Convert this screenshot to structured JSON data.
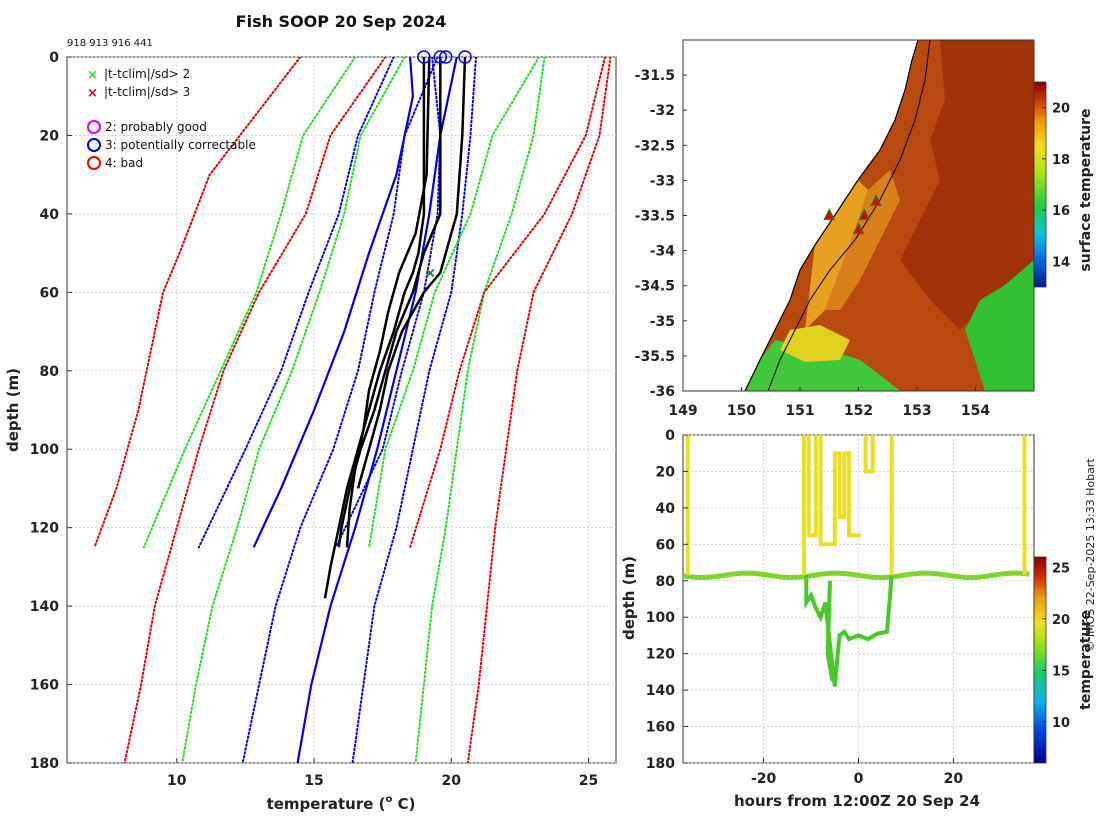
{
  "figure": {
    "title": "Fish SOOP 20 Sep 2024",
    "ids_text": "918 913 916 441",
    "credit": "© IMOS 22-Sep-2025 13:33 Hobart"
  },
  "chart_data": [
    {
      "type": "line",
      "name": "profile-panel",
      "xlabel": "temperature (°C)",
      "xlabel_main": "temperature (",
      "xlabel_sup": "o",
      "xlabel_tail": " C)",
      "ylabel": "depth (m)",
      "xlim": [
        6,
        26
      ],
      "ylim": [
        180,
        0
      ],
      "xticks": [
        10,
        15,
        20,
        25
      ],
      "yticks": [
        0,
        20,
        40,
        60,
        80,
        100,
        120,
        140,
        160,
        180
      ],
      "legend": [
        {
          "label": "|t-tclim|/sd> 2",
          "marker": "x",
          "color": "#22dd22"
        },
        {
          "label": "|t-tclim|/sd> 3",
          "marker": "x",
          "color": "#dd0000"
        },
        {
          "label": "2: probably good",
          "marker": "o",
          "color": "#dd00dd"
        },
        {
          "label": "3: potentially correctable",
          "marker": "o",
          "color": "#0000ee"
        },
        {
          "label": "4: bad",
          "marker": "o",
          "color": "#ee0000"
        }
      ],
      "climatology": [
        {
          "name": "red-sd3-left-1",
          "color": "#dd0000",
          "style": "dotted",
          "depth": [
            0,
            30,
            50,
            60,
            90,
            110,
            125
          ],
          "temp": [
            14.5,
            11.2,
            10.1,
            9.5,
            8.6,
            7.8,
            7.0
          ]
        },
        {
          "name": "red-sd3-left-2",
          "color": "#dd0000",
          "style": "dotted",
          "depth": [
            0,
            20,
            40,
            60,
            80,
            100,
            120,
            140,
            160,
            180
          ],
          "temp": [
            17.6,
            15.6,
            14.7,
            13.0,
            11.7,
            10.8,
            10.0,
            9.2,
            8.7,
            8.1
          ]
        },
        {
          "name": "green-sd2-left-1",
          "color": "#22dd22",
          "style": "dotted",
          "depth": [
            0,
            20,
            40,
            60,
            80,
            100,
            125
          ],
          "temp": [
            16.5,
            14.6,
            13.8,
            12.9,
            11.6,
            10.3,
            8.8
          ]
        },
        {
          "name": "green-sd2-left-2",
          "color": "#22dd22",
          "style": "dotted",
          "depth": [
            0,
            20,
            40,
            60,
            80,
            100,
            120,
            140,
            160,
            180
          ],
          "temp": [
            18.3,
            16.7,
            16.1,
            15.2,
            14.2,
            13.0,
            12.2,
            11.3,
            10.7,
            10.2
          ]
        },
        {
          "name": "blue-sd1-left-1",
          "color": "#0000dd",
          "style": "dotted",
          "depth": [
            0,
            20,
            40,
            60,
            80,
            100,
            125
          ],
          "temp": [
            17.9,
            16.6,
            15.9,
            14.8,
            13.8,
            12.5,
            10.8
          ]
        },
        {
          "name": "blue-sd1-left-2",
          "color": "#0000dd",
          "style": "dotted",
          "depth": [
            0,
            20,
            40,
            60,
            80,
            100,
            120,
            140,
            160,
            180
          ],
          "temp": [
            19.5,
            18.3,
            17.9,
            17.2,
            16.6,
            15.7,
            14.5,
            13.6,
            13.0,
            12.4
          ]
        },
        {
          "name": "blue-mean-1",
          "color": "#0000dd",
          "style": "solid",
          "depth": [
            0,
            10,
            30,
            50,
            70,
            90,
            110,
            125
          ],
          "temp": [
            18.5,
            18.6,
            18.0,
            17.0,
            16.1,
            15.0,
            13.8,
            12.8
          ]
        },
        {
          "name": "blue-mean-2",
          "color": "#0000dd",
          "style": "solid",
          "depth": [
            0,
            20,
            40,
            60,
            80,
            100,
            120,
            140,
            160,
            180
          ],
          "temp": [
            20.2,
            19.6,
            19.2,
            18.7,
            18.0,
            17.3,
            16.5,
            15.6,
            14.9,
            14.4
          ]
        },
        {
          "name": "blue-sd1-right-1",
          "color": "#0000dd",
          "style": "dotted",
          "depth": [
            0,
            20,
            40,
            60,
            80,
            100,
            125
          ],
          "temp": [
            19.3,
            19.6,
            19.5,
            19.0,
            18.2,
            17.5,
            15.8
          ]
        },
        {
          "name": "blue-sd1-right-2",
          "color": "#0000dd",
          "style": "dotted",
          "depth": [
            0,
            20,
            40,
            60,
            80,
            100,
            120,
            140,
            160,
            180
          ],
          "temp": [
            20.9,
            20.7,
            20.4,
            20.0,
            19.2,
            18.6,
            18.0,
            17.2,
            16.8,
            16.4
          ]
        },
        {
          "name": "green-sd2-right-1",
          "color": "#22dd22",
          "style": "dotted",
          "depth": [
            0,
            20,
            40,
            60,
            80,
            100,
            125
          ],
          "temp": [
            23.2,
            21.5,
            20.7,
            19.4,
            18.6,
            17.6,
            17.0
          ]
        },
        {
          "name": "green-sd2-right-2",
          "color": "#22dd22",
          "style": "dotted",
          "depth": [
            0,
            20,
            40,
            60,
            80,
            100,
            120,
            140,
            160,
            180
          ],
          "temp": [
            23.4,
            23.0,
            22.2,
            21.2,
            20.6,
            20.2,
            19.8,
            19.3,
            19.0,
            18.7
          ]
        },
        {
          "name": "red-sd3-right-1",
          "color": "#dd0000",
          "style": "dotted",
          "depth": [
            0,
            20,
            40,
            60,
            80,
            100,
            125
          ],
          "temp": [
            25.6,
            24.9,
            23.4,
            21.2,
            20.3,
            19.6,
            18.5
          ]
        },
        {
          "name": "red-sd3-right-2",
          "color": "#dd0000",
          "style": "dotted",
          "depth": [
            0,
            20,
            40,
            60,
            80,
            100,
            120,
            140,
            160,
            180
          ],
          "temp": [
            25.8,
            25.4,
            24.4,
            23.0,
            22.4,
            22.0,
            21.6,
            21.3,
            21.0,
            20.6
          ]
        }
      ],
      "profiles": [
        {
          "name": "profile-1",
          "color": "#000000",
          "depth": [
            0,
            40,
            50,
            55,
            60,
            70,
            80,
            90,
            100,
            110,
            120,
            130,
            138
          ],
          "temp": [
            19.0,
            19.0,
            18.8,
            18.6,
            18.3,
            17.9,
            17.4,
            17.0,
            16.6,
            16.2,
            15.9,
            15.6,
            15.4
          ]
        },
        {
          "name": "profile-2",
          "color": "#000000",
          "depth": [
            0,
            40,
            50,
            60,
            70,
            80,
            90,
            100,
            110,
            120,
            125
          ],
          "temp": [
            19.6,
            19.6,
            19.0,
            18.6,
            18.0,
            17.6,
            17.2,
            16.7,
            16.3,
            16.0,
            15.9
          ]
        },
        {
          "name": "profile-3",
          "color": "#000000",
          "depth": [
            0,
            20,
            40,
            55,
            60,
            70,
            80,
            90,
            100,
            110
          ],
          "temp": [
            20.5,
            20.4,
            20.2,
            19.6,
            19.0,
            18.2,
            17.7,
            17.4,
            17.0,
            16.6
          ]
        },
        {
          "name": "profile-4",
          "color": "#000000",
          "depth": [
            0,
            30,
            45,
            55,
            65,
            75,
            85,
            95,
            105,
            115,
            125
          ],
          "temp": [
            19.2,
            19.1,
            18.7,
            18.1,
            17.7,
            17.4,
            17.0,
            16.8,
            16.5,
            16.3,
            16.2
          ]
        }
      ],
      "flag_markers": [
        {
          "depth": 0,
          "temp": 19.0,
          "flag": "3: potentially correctable"
        },
        {
          "depth": 0,
          "temp": 19.6,
          "flag": "3: potentially correctable"
        },
        {
          "depth": 0,
          "temp": 19.8,
          "flag": "3: potentially correctable"
        },
        {
          "depth": 0,
          "temp": 20.5,
          "flag": "3: potentially correctable"
        },
        {
          "depth": 55,
          "temp": 19.2,
          "flag": "|t-tclim|/sd> 2"
        }
      ]
    },
    {
      "type": "heatmap",
      "name": "surface-temperature-map",
      "xlim": [
        149,
        155
      ],
      "ylim": [
        -36,
        -31
      ],
      "xticks": [
        149,
        150,
        151,
        152,
        153,
        154
      ],
      "yticks": [
        -31.5,
        -32,
        -32.5,
        -33,
        -33.5,
        -34,
        -34.5,
        -35,
        -35.5,
        -36
      ],
      "colorbar": {
        "label": "surface temperature",
        "min": 13,
        "max": 21,
        "ticks": [
          14,
          16,
          18,
          20
        ]
      },
      "stations": [
        {
          "lon": 151.5,
          "lat": -33.5
        },
        {
          "lon": 152.0,
          "lat": -33.7
        },
        {
          "lon": 152.1,
          "lat": -33.5
        },
        {
          "lon": 152.3,
          "lat": -33.3
        }
      ]
    },
    {
      "type": "scatter",
      "name": "time-depth-panel",
      "xlabel": "hours from 12:00Z 20 Sep 24",
      "ylabel": "depth (m)",
      "xlim": [
        -37,
        37
      ],
      "ylim": [
        180,
        0
      ],
      "xticks": [
        -20,
        0,
        20
      ],
      "yticks": [
        0,
        20,
        40,
        60,
        80,
        100,
        120,
        140,
        160,
        180
      ],
      "colorbar": {
        "label": "temperature",
        "min": 6,
        "max": 26,
        "ticks": [
          10,
          15,
          20,
          25
        ]
      }
    }
  ]
}
